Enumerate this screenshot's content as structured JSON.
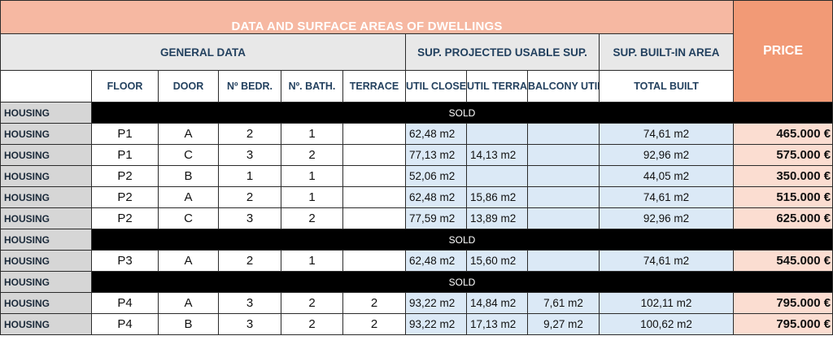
{
  "title": "DATA AND SURFACE AREAS OF DWELLINGS",
  "groups": {
    "general": "GENERAL DATA",
    "projected": "SUP. PROJECTED USABLE SUP.",
    "built": "SUP. BUILT-IN AREA",
    "price": "PRICE"
  },
  "columns": {
    "floor": "FLOOR",
    "door": "DOOR",
    "bedrooms": "Nº BEDR.",
    "bathrooms": "Nº. BATH.",
    "terrace": "TERRACE",
    "util_closed": "UTIL CLOSED",
    "util_terrace": "UTIL TERRACE",
    "balcony_utility": "BALCONY UTILITY",
    "total_built": "TOTAL BUILT"
  },
  "colors": {
    "title_bg": "#f6b8a2",
    "price_header_bg": "#f29a76",
    "price_cell_bg": "#fbddd1",
    "area_bg": "#dbe9f6",
    "header_text": "#23415f",
    "sold_bg": "#000000"
  },
  "sold_label": "SOLD",
  "rows": [
    {
      "type": "sold",
      "label": "HOUSING"
    },
    {
      "type": "unit",
      "label": "HOUSING",
      "floor": "P1",
      "door": "A",
      "bedrooms": "2",
      "bathrooms": "1",
      "terrace": "",
      "util_closed": "62,48 m2",
      "util_terrace": "",
      "balcony_utility": "",
      "total_built": "74,61 m2",
      "price": "465.000 €"
    },
    {
      "type": "unit",
      "label": "HOUSING",
      "floor": "P1",
      "door": "C",
      "bedrooms": "3",
      "bathrooms": "2",
      "terrace": "",
      "util_closed": "77,13 m2",
      "util_terrace": "14,13 m2",
      "balcony_utility": "",
      "total_built": "92,96 m2",
      "price": "575.000 €"
    },
    {
      "type": "unit",
      "label": "HOUSING",
      "floor": "P2",
      "door": "B",
      "bedrooms": "1",
      "bathrooms": "1",
      "terrace": "",
      "util_closed": "52,06 m2",
      "util_terrace": "",
      "balcony_utility": "",
      "total_built": "44,05 m2",
      "price": "350.000 €"
    },
    {
      "type": "unit",
      "label": "HOUSING",
      "floor": "P2",
      "door": "A",
      "bedrooms": "2",
      "bathrooms": "1",
      "terrace": "",
      "util_closed": "62,48 m2",
      "util_terrace": "15,86 m2",
      "balcony_utility": "",
      "total_built": "74,61 m2",
      "price": "515.000 €"
    },
    {
      "type": "unit",
      "label": "HOUSING",
      "floor": "P2",
      "door": "C",
      "bedrooms": "3",
      "bathrooms": "2",
      "terrace": "",
      "util_closed": "77,59 m2",
      "util_terrace": "13,89 m2",
      "balcony_utility": "",
      "total_built": "92,96 m2",
      "price": "625.000 €"
    },
    {
      "type": "sold",
      "label": "HOUSING"
    },
    {
      "type": "unit",
      "label": "HOUSING",
      "floor": "P3",
      "door": "A",
      "bedrooms": "2",
      "bathrooms": "1",
      "terrace": "",
      "util_closed": "62,48 m2",
      "util_terrace": "15,60 m2",
      "balcony_utility": "",
      "total_built": "74,61 m2",
      "price": "545.000 €"
    },
    {
      "type": "sold",
      "label": "HOUSING"
    },
    {
      "type": "unit",
      "label": "HOUSING",
      "floor": "P4",
      "door": "A",
      "bedrooms": "3",
      "bathrooms": "2",
      "terrace": "2",
      "util_closed": "93,22 m2",
      "util_terrace": "14,84 m2",
      "balcony_utility": "7,61 m2",
      "total_built": "102,11 m2",
      "price": "795.000 €"
    },
    {
      "type": "unit",
      "label": "HOUSING",
      "floor": "P4",
      "door": "B",
      "bedrooms": "3",
      "bathrooms": "2",
      "terrace": "2",
      "util_closed": "93,22 m2",
      "util_terrace": "17,13 m2",
      "balcony_utility": "9,27 m2",
      "total_built": "100,62 m2",
      "price": "795.000 €"
    }
  ]
}
